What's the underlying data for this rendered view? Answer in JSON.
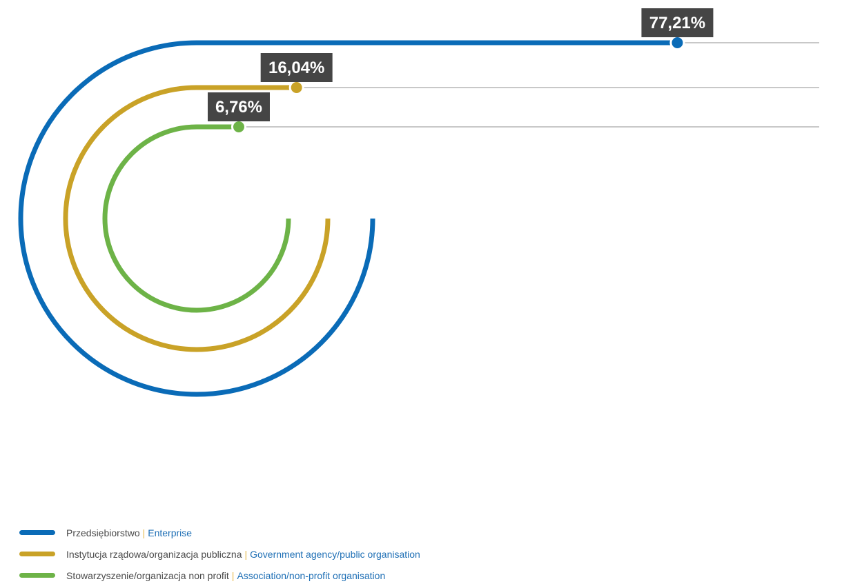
{
  "chart_data": {
    "type": "radial-bar",
    "unit": "%",
    "series": [
      {
        "name_pl": "Przedsiębiorstwo",
        "name_en": "Enterprise",
        "value": 77.21,
        "label": "77,21%",
        "color": "#0a6bb7"
      },
      {
        "name_pl": "Instytucja rządowa/organizacja publiczna",
        "name_en": "Government agency/public organisation",
        "value": 16.04,
        "label": "16,04%",
        "color": "#c9a227"
      },
      {
        "name_pl": "Stowarzyszenie/organizacja non profit",
        "name_en": "Association/non-profit organisation",
        "value": 6.76,
        "label": "6,76%",
        "color": "#6db347"
      }
    ],
    "label_color": "#454545",
    "track_color": "#a8a8a8"
  },
  "legend": {
    "separator": "|",
    "items": [
      {
        "pl": "Przedsiębiorstwo",
        "en": "Enterprise",
        "color": "#0a6bb7"
      },
      {
        "pl": "Instytucja rządowa/organizacja publiczna",
        "en": "Government agency/public organisation",
        "color": "#c9a227"
      },
      {
        "pl": "Stowarzyszenie/organizacja non profit",
        "en": "Association/non-profit organisation",
        "color": "#6db347"
      }
    ]
  }
}
